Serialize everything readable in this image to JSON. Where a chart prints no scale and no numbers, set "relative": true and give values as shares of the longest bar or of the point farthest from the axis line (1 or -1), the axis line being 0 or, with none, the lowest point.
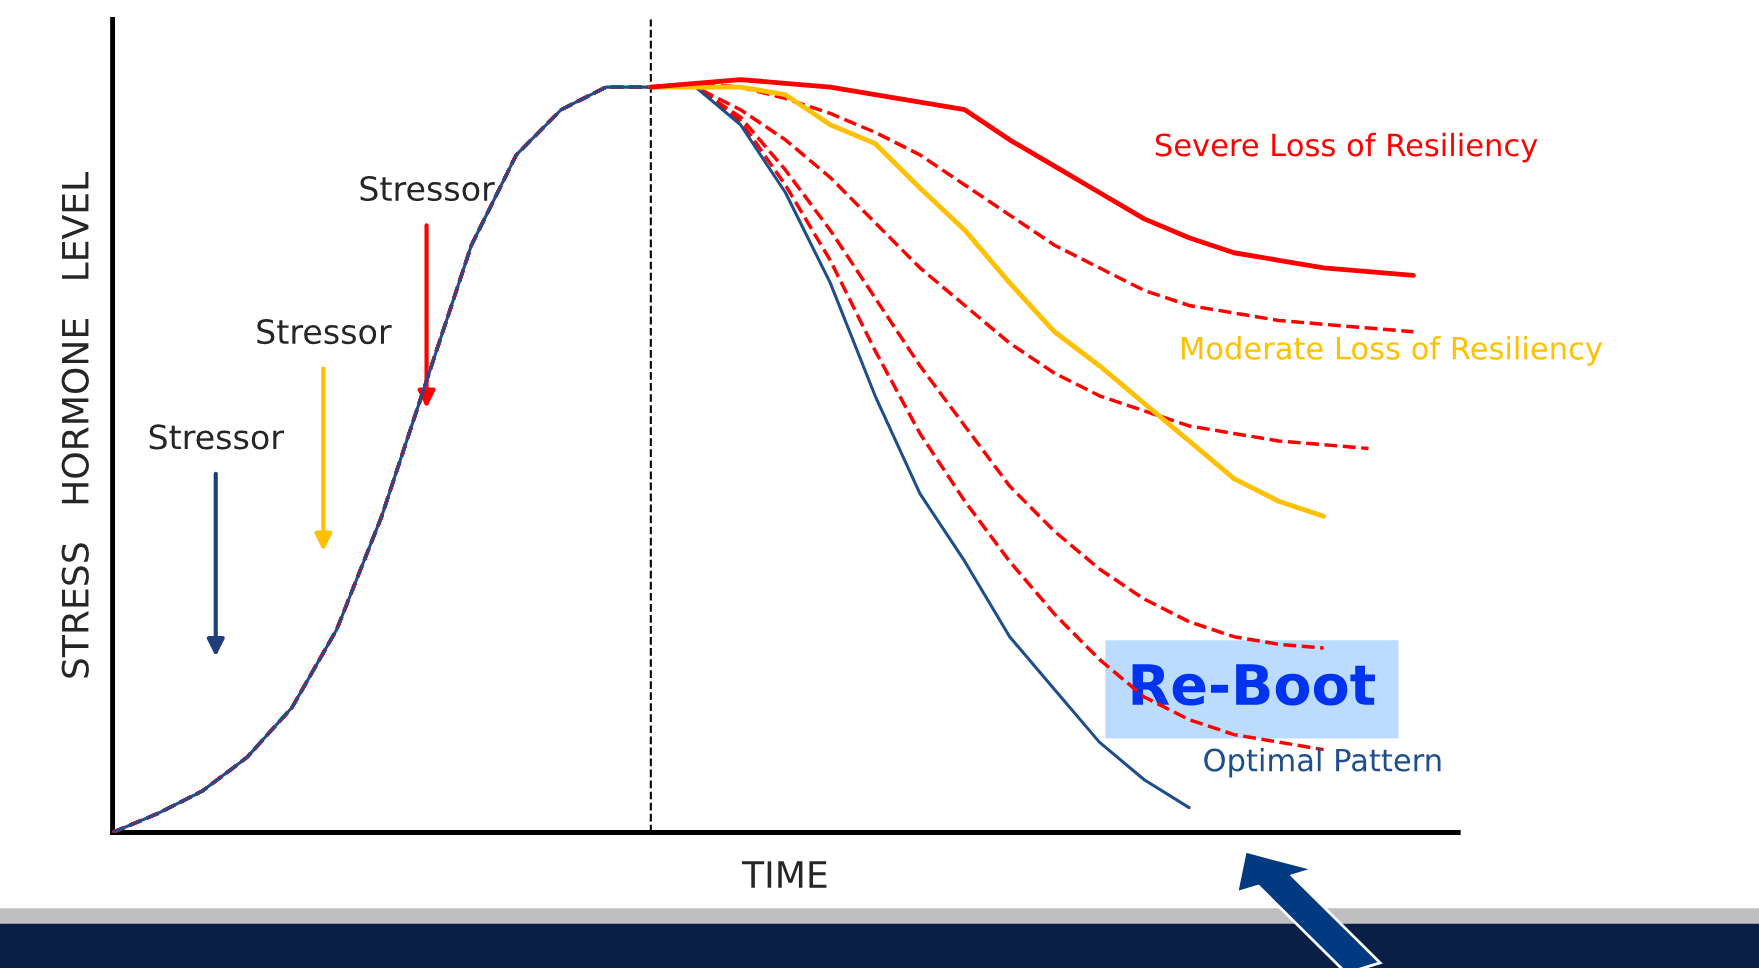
{
  "chart_data": {
    "type": "line",
    "relative": true,
    "xlabel": "TIME",
    "ylabel": "STRESS   HORMONE   LEVEL",
    "categories": [
      null,
      null,
      null,
      null,
      null,
      null,
      null,
      null,
      null,
      null,
      null,
      null,
      null,
      null,
      null,
      null,
      null,
      null,
      null,
      null,
      null,
      null,
      null,
      null,
      null,
      null,
      null,
      null,
      null,
      null,
      null
    ],
    "series": [
      {
        "color": "#ff0000",
        "line_style": "dashed",
        "values": [
          0,
          0.025,
          0.055,
          0.1,
          0.166,
          0.27,
          0.42,
          0.6,
          0.78,
          0.9,
          0.96,
          0.99,
          0.99,
          0.995,
          0.99,
          0.975,
          0.955,
          0.93,
          0.9,
          0.86,
          0.82,
          0.78,
          0.75,
          0.72,
          0.7,
          0.69,
          0.68,
          0.675,
          0.67,
          0.665,
          null
        ]
      },
      {
        "color": "#ff0000",
        "line_style": "dashed",
        "values": [
          0,
          0.025,
          0.055,
          0.1,
          0.166,
          0.27,
          0.42,
          0.6,
          0.78,
          0.9,
          0.96,
          0.99,
          0.99,
          0.99,
          0.96,
          0.92,
          0.87,
          0.81,
          0.75,
          0.7,
          0.65,
          0.61,
          0.58,
          0.56,
          0.54,
          0.53,
          0.52,
          0.515,
          0.51,
          null,
          null
        ]
      },
      {
        "color": "#ff0000",
        "line_style": "dashed",
        "values": [
          0,
          0.025,
          0.055,
          0.1,
          0.166,
          0.27,
          0.42,
          0.6,
          0.78,
          0.9,
          0.96,
          0.99,
          0.99,
          0.99,
          0.95,
          0.88,
          0.8,
          0.71,
          0.62,
          0.54,
          0.46,
          0.4,
          0.35,
          0.31,
          0.28,
          0.26,
          0.25,
          0.245,
          null,
          null,
          null
        ]
      },
      {
        "color": "#ff0000",
        "line_style": "dashed",
        "values": [
          0,
          0.025,
          0.055,
          0.1,
          0.166,
          0.27,
          0.42,
          0.6,
          0.78,
          0.9,
          0.96,
          0.99,
          0.99,
          0.99,
          0.945,
          0.86,
          0.76,
          0.64,
          0.53,
          0.44,
          0.36,
          0.29,
          0.23,
          0.18,
          0.15,
          0.13,
          0.12,
          0.11,
          null,
          null,
          null
        ]
      },
      {
        "name": "Optimal Pattern",
        "color": "#1f4e8c",
        "line_style": "solid",
        "values": [
          0,
          0.025,
          0.055,
          0.1,
          0.166,
          0.27,
          0.42,
          0.6,
          0.78,
          0.9,
          0.96,
          0.99,
          0.99,
          0.99,
          0.94,
          0.85,
          0.73,
          0.58,
          0.45,
          0.36,
          0.26,
          0.19,
          0.12,
          0.07,
          0.033,
          null,
          null,
          null,
          null,
          null,
          null
        ]
      },
      {
        "name": "Moderate Loss of Resiliency",
        "color": "#ffc000",
        "line_style": "solid",
        "values": [
          null,
          null,
          null,
          null,
          null,
          null,
          null,
          null,
          null,
          null,
          null,
          null,
          0.99,
          0.99,
          0.99,
          0.98,
          0.94,
          0.915,
          0.856,
          0.8,
          0.73,
          0.665,
          0.62,
          0.57,
          0.52,
          0.47,
          0.44,
          0.42,
          null,
          null,
          null
        ]
      },
      {
        "name": "Severe Loss of Resiliency",
        "color": "#ff0000",
        "line_style": "solid",
        "values": [
          null,
          null,
          null,
          null,
          null,
          null,
          null,
          null,
          null,
          null,
          null,
          null,
          0.99,
          0.995,
          1.0,
          0.995,
          0.99,
          0.98,
          0.97,
          0.96,
          0.92,
          0.885,
          0.85,
          0.815,
          0.79,
          0.77,
          0.76,
          0.75,
          0.745,
          0.74,
          null
        ]
      }
    ],
    "annotations": [
      "Stressor",
      "Stressor",
      "Stressor",
      "Re-Boot"
    ],
    "legend": false
  }
}
